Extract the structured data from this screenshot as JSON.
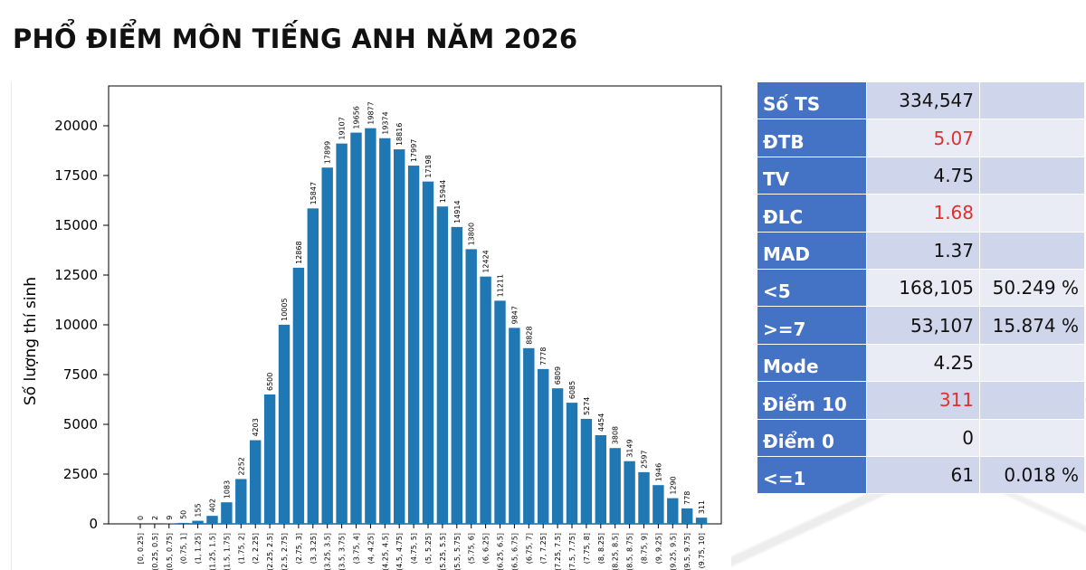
{
  "title": "PHỔ ĐIỂM MÔN TIẾNG ANH NĂM 2026",
  "colors": {
    "bar": "#1f77b4",
    "table_header": "#4472c4",
    "table_row": "#cfd5ea",
    "table_row_alt": "#e9ebf5",
    "highlight": "#e03030"
  },
  "chart_data": {
    "type": "bar",
    "ylabel": "Số lượng thí sinh",
    "xlabel": "",
    "ylim": [
      0,
      20000
    ],
    "yticks": [
      0,
      2500,
      5000,
      7500,
      10000,
      12500,
      15000,
      17500,
      20000
    ],
    "categories": [
      "[0, 0.25]",
      "(0.25, 0.5]",
      "(0.5, 0.75]",
      "(0.75, 1]",
      "(1, 1.25]",
      "(1.25, 1.5]",
      "(1.5, 1.75]",
      "(1.75, 2]",
      "(2, 2.25]",
      "(2.25, 2.5]",
      "(2.5, 2.75]",
      "(2.75, 3]",
      "(3, 3.25]",
      "(3.25, 3.5]",
      "(3.5, 3.75]",
      "(3.75, 4]",
      "(4, 4.25]",
      "(4.25, 4.5]",
      "(4.5, 4.75]",
      "(4.75, 5]",
      "(5, 5.25]",
      "(5.25, 5.5]",
      "(5.5, 5.75]",
      "(5.75, 6]",
      "(6, 6.25]",
      "(6.25, 6.5]",
      "(6.5, 6.75]",
      "(6.75, 7]",
      "(7, 7.25]",
      "(7.25, 7.5]",
      "(7.5, 7.75]",
      "(7.75, 8]",
      "(8, 8.25]",
      "(8.25, 8.5]",
      "(8.5, 8.75]",
      "(8.75, 9]",
      "(9, 9.25]",
      "(9.25, 9.5]",
      "(9.5, 9.75]",
      "(9.75, 10]"
    ],
    "values": [
      0,
      2,
      9,
      50,
      155,
      402,
      1083,
      2252,
      4203,
      6500,
      10005,
      12868,
      15847,
      17899,
      19107,
      19656,
      19877,
      19374,
      18816,
      17997,
      17198,
      15944,
      14914,
      13800,
      12424,
      11211,
      9847,
      8828,
      7778,
      6809,
      6085,
      5274,
      4454,
      3808,
      3149,
      2597,
      1946,
      1290,
      778,
      311
    ],
    "grid": false,
    "legend": "none"
  },
  "stats": [
    {
      "label": "Số TS",
      "value": "334,547",
      "percent": "",
      "highlight": false
    },
    {
      "label": "ĐTB",
      "value": "5.07",
      "percent": "",
      "highlight": true
    },
    {
      "label": "TV",
      "value": "4.75",
      "percent": "",
      "highlight": false
    },
    {
      "label": "ĐLC",
      "value": "1.68",
      "percent": "",
      "highlight": true
    },
    {
      "label": "MAD",
      "value": "1.37",
      "percent": "",
      "highlight": false
    },
    {
      "label": "<5",
      "value": "168,105",
      "percent": "50.249 %",
      "highlight": false
    },
    {
      "label": ">=7",
      "value": "53,107",
      "percent": "15.874 %",
      "highlight": false
    },
    {
      "label": "Mode",
      "value": "4.25",
      "percent": "",
      "highlight": false
    },
    {
      "label": "Điểm 10",
      "value": "311",
      "percent": "",
      "highlight": true
    },
    {
      "label": "Điểm 0",
      "value": "0",
      "percent": "",
      "highlight": false
    },
    {
      "label": "<=1",
      "value": "61",
      "percent": "0.018 %",
      "highlight": false
    }
  ]
}
